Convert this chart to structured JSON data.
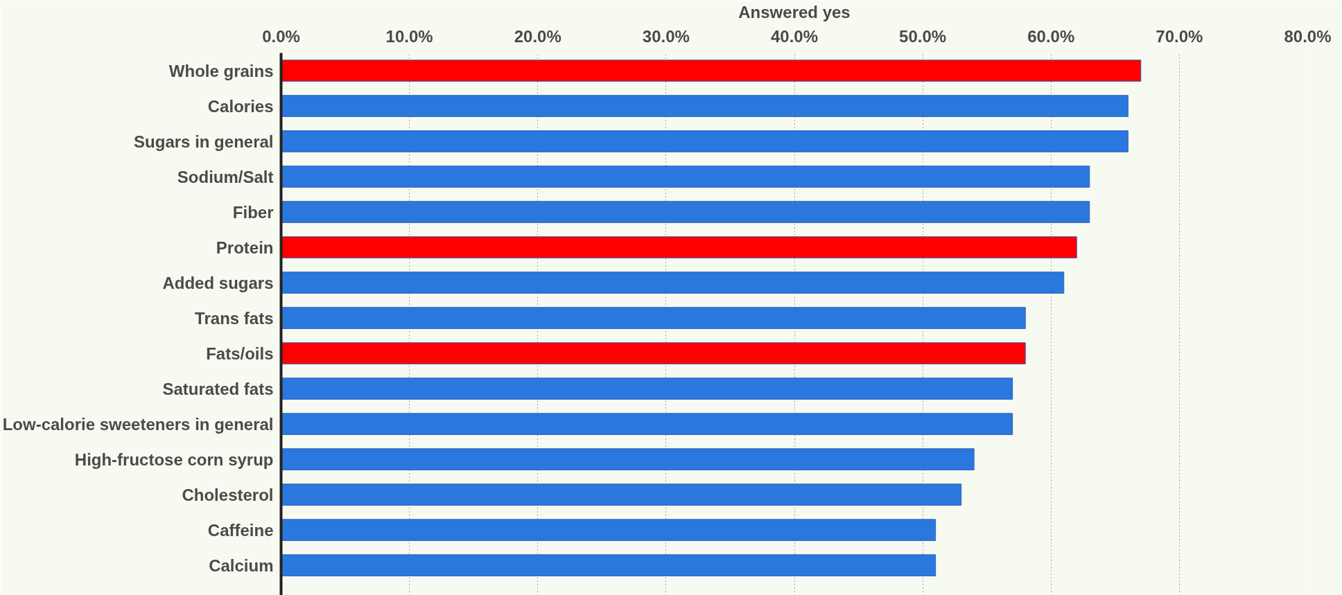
{
  "chart_data": {
    "type": "bar",
    "orientation": "horizontal",
    "xlabel": "Answered yes",
    "categories": [
      "Whole grains",
      "Calories",
      "Sugars in general",
      "Sodium/Salt",
      "Fiber",
      "Protein",
      "Added sugars",
      "Trans fats",
      "Fats/oils",
      "Saturated fats",
      "Low-calorie sweeteners in general",
      "High-fructose corn syrup",
      "Cholesterol",
      "Caffeine",
      "Calcium"
    ],
    "values": [
      67,
      66,
      66,
      63,
      63,
      62,
      61,
      58,
      58,
      57,
      57,
      54,
      53,
      51,
      51
    ],
    "colors": [
      "#ff0000",
      "#2a78dd",
      "#2a78dd",
      "#2a78dd",
      "#2a78dd",
      "#ff0000",
      "#2a78dd",
      "#2a78dd",
      "#ff0000",
      "#2a78dd",
      "#2a78dd",
      "#2a78dd",
      "#2a78dd",
      "#2a78dd",
      "#2a78dd"
    ],
    "xlim": [
      0,
      80
    ],
    "xticks": [
      {
        "value": 0,
        "label": "0.0%"
      },
      {
        "value": 10,
        "label": "10.0%"
      },
      {
        "value": 20,
        "label": "20.0%"
      },
      {
        "value": 30,
        "label": "30.0%"
      },
      {
        "value": 40,
        "label": "40.0%"
      },
      {
        "value": 50,
        "label": "50.0%"
      },
      {
        "value": 60,
        "label": "60.0%"
      },
      {
        "value": 70,
        "label": "70.0%"
      },
      {
        "value": 80,
        "label": "80.0%"
      }
    ],
    "grid": "x"
  }
}
